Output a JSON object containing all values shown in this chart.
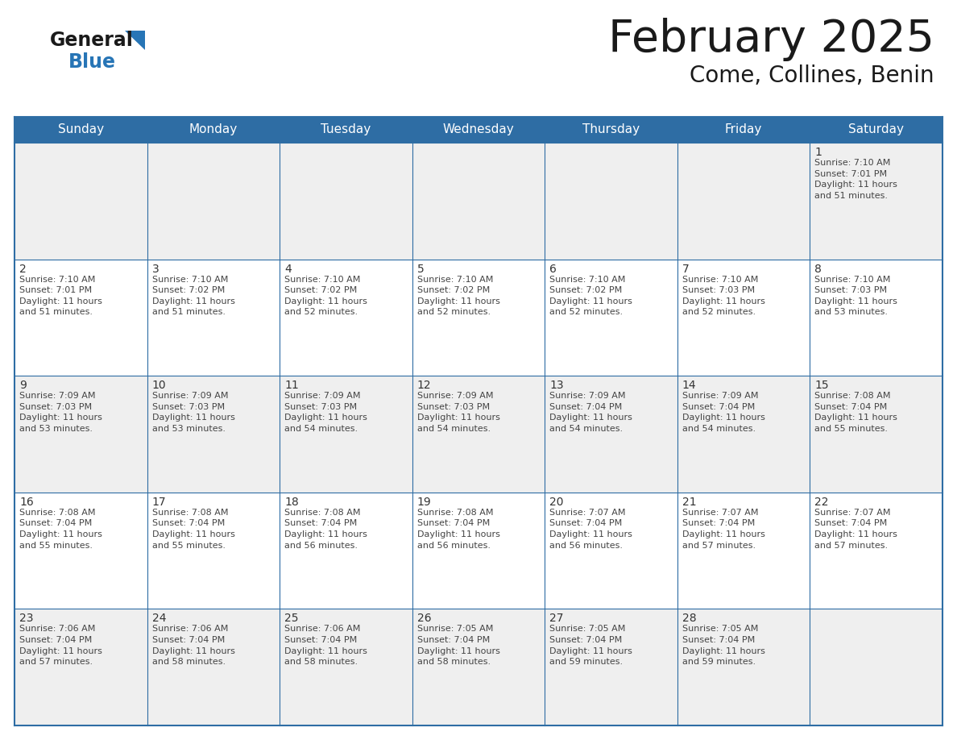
{
  "title": "February 2025",
  "subtitle": "Come, Collines, Benin",
  "header_bg": "#2E6DA4",
  "header_text_color": "#FFFFFF",
  "cell_bg_odd": "#EFEFEF",
  "cell_bg_even": "#FFFFFF",
  "border_color": "#2E6DA4",
  "text_color": "#333333",
  "day_headers": [
    "Sunday",
    "Monday",
    "Tuesday",
    "Wednesday",
    "Thursday",
    "Friday",
    "Saturday"
  ],
  "weeks": [
    [
      {
        "day": null,
        "text": ""
      },
      {
        "day": null,
        "text": ""
      },
      {
        "day": null,
        "text": ""
      },
      {
        "day": null,
        "text": ""
      },
      {
        "day": null,
        "text": ""
      },
      {
        "day": null,
        "text": ""
      },
      {
        "day": 1,
        "text": "Sunrise: 7:10 AM\nSunset: 7:01 PM\nDaylight: 11 hours\nand 51 minutes."
      }
    ],
    [
      {
        "day": 2,
        "text": "Sunrise: 7:10 AM\nSunset: 7:01 PM\nDaylight: 11 hours\nand 51 minutes."
      },
      {
        "day": 3,
        "text": "Sunrise: 7:10 AM\nSunset: 7:02 PM\nDaylight: 11 hours\nand 51 minutes."
      },
      {
        "day": 4,
        "text": "Sunrise: 7:10 AM\nSunset: 7:02 PM\nDaylight: 11 hours\nand 52 minutes."
      },
      {
        "day": 5,
        "text": "Sunrise: 7:10 AM\nSunset: 7:02 PM\nDaylight: 11 hours\nand 52 minutes."
      },
      {
        "day": 6,
        "text": "Sunrise: 7:10 AM\nSunset: 7:02 PM\nDaylight: 11 hours\nand 52 minutes."
      },
      {
        "day": 7,
        "text": "Sunrise: 7:10 AM\nSunset: 7:03 PM\nDaylight: 11 hours\nand 52 minutes."
      },
      {
        "day": 8,
        "text": "Sunrise: 7:10 AM\nSunset: 7:03 PM\nDaylight: 11 hours\nand 53 minutes."
      }
    ],
    [
      {
        "day": 9,
        "text": "Sunrise: 7:09 AM\nSunset: 7:03 PM\nDaylight: 11 hours\nand 53 minutes."
      },
      {
        "day": 10,
        "text": "Sunrise: 7:09 AM\nSunset: 7:03 PM\nDaylight: 11 hours\nand 53 minutes."
      },
      {
        "day": 11,
        "text": "Sunrise: 7:09 AM\nSunset: 7:03 PM\nDaylight: 11 hours\nand 54 minutes."
      },
      {
        "day": 12,
        "text": "Sunrise: 7:09 AM\nSunset: 7:03 PM\nDaylight: 11 hours\nand 54 minutes."
      },
      {
        "day": 13,
        "text": "Sunrise: 7:09 AM\nSunset: 7:04 PM\nDaylight: 11 hours\nand 54 minutes."
      },
      {
        "day": 14,
        "text": "Sunrise: 7:09 AM\nSunset: 7:04 PM\nDaylight: 11 hours\nand 54 minutes."
      },
      {
        "day": 15,
        "text": "Sunrise: 7:08 AM\nSunset: 7:04 PM\nDaylight: 11 hours\nand 55 minutes."
      }
    ],
    [
      {
        "day": 16,
        "text": "Sunrise: 7:08 AM\nSunset: 7:04 PM\nDaylight: 11 hours\nand 55 minutes."
      },
      {
        "day": 17,
        "text": "Sunrise: 7:08 AM\nSunset: 7:04 PM\nDaylight: 11 hours\nand 55 minutes."
      },
      {
        "day": 18,
        "text": "Sunrise: 7:08 AM\nSunset: 7:04 PM\nDaylight: 11 hours\nand 56 minutes."
      },
      {
        "day": 19,
        "text": "Sunrise: 7:08 AM\nSunset: 7:04 PM\nDaylight: 11 hours\nand 56 minutes."
      },
      {
        "day": 20,
        "text": "Sunrise: 7:07 AM\nSunset: 7:04 PM\nDaylight: 11 hours\nand 56 minutes."
      },
      {
        "day": 21,
        "text": "Sunrise: 7:07 AM\nSunset: 7:04 PM\nDaylight: 11 hours\nand 57 minutes."
      },
      {
        "day": 22,
        "text": "Sunrise: 7:07 AM\nSunset: 7:04 PM\nDaylight: 11 hours\nand 57 minutes."
      }
    ],
    [
      {
        "day": 23,
        "text": "Sunrise: 7:06 AM\nSunset: 7:04 PM\nDaylight: 11 hours\nand 57 minutes."
      },
      {
        "day": 24,
        "text": "Sunrise: 7:06 AM\nSunset: 7:04 PM\nDaylight: 11 hours\nand 58 minutes."
      },
      {
        "day": 25,
        "text": "Sunrise: 7:06 AM\nSunset: 7:04 PM\nDaylight: 11 hours\nand 58 minutes."
      },
      {
        "day": 26,
        "text": "Sunrise: 7:05 AM\nSunset: 7:04 PM\nDaylight: 11 hours\nand 58 minutes."
      },
      {
        "day": 27,
        "text": "Sunrise: 7:05 AM\nSunset: 7:04 PM\nDaylight: 11 hours\nand 59 minutes."
      },
      {
        "day": 28,
        "text": "Sunrise: 7:05 AM\nSunset: 7:04 PM\nDaylight: 11 hours\nand 59 minutes."
      },
      {
        "day": null,
        "text": ""
      }
    ]
  ],
  "figsize": [
    11.88,
    9.18
  ],
  "dpi": 100
}
